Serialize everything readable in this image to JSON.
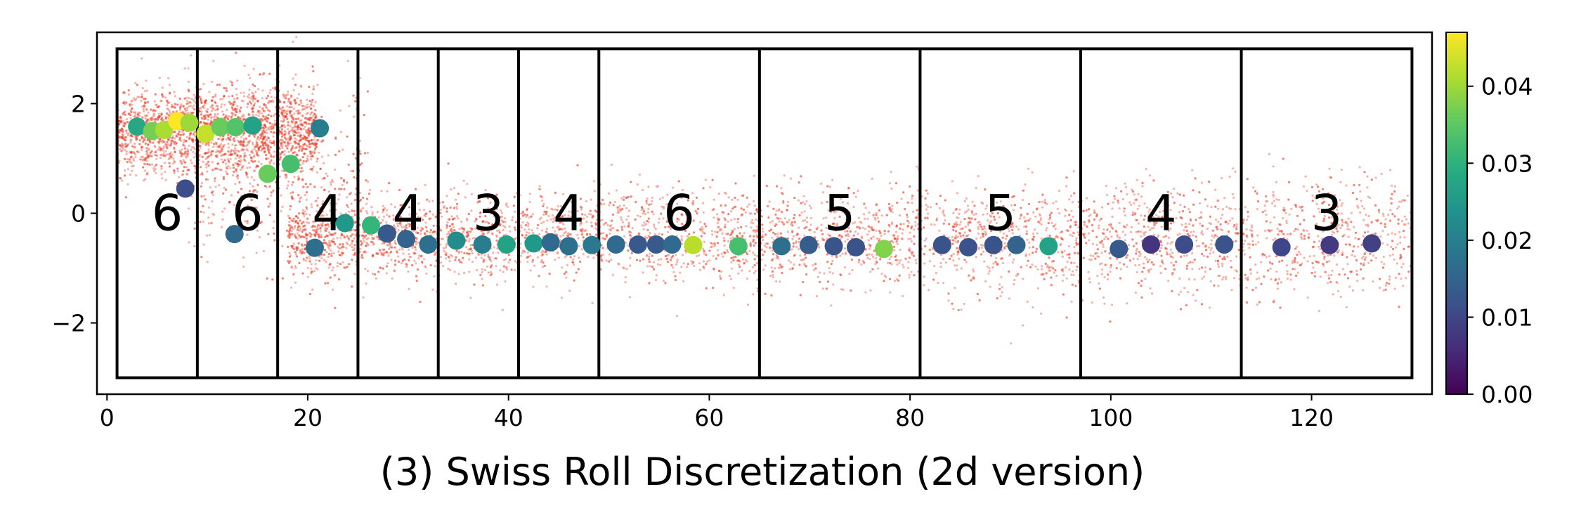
{
  "chart_data": {
    "type": "scatter",
    "title": "(3) Swiss Roll Discretization (2d version)",
    "xlabel": "",
    "ylabel": "",
    "xlim": [
      -1,
      132
    ],
    "ylim": [
      -3.3,
      3.3
    ],
    "x_ticks": [
      0,
      20,
      40,
      60,
      80,
      100,
      120
    ],
    "y_ticks": [
      -2,
      0,
      2
    ],
    "x_tick_labels": [
      "0",
      "20",
      "40",
      "60",
      "80",
      "100",
      "120"
    ],
    "y_tick_labels": [
      "−2",
      "0",
      "2"
    ],
    "grid": false,
    "colorbar": {
      "colormap": "viridis",
      "range": [
        0.0,
        0.047
      ],
      "ticks": [
        0.0,
        0.01,
        0.02,
        0.03,
        0.04
      ],
      "tick_labels": [
        "0.00",
        "0.01",
        "0.02",
        "0.03",
        "0.04"
      ]
    },
    "background_points": {
      "color": "#e8402a",
      "description_free": true,
      "count_hint": 16000
    },
    "outer_box": {
      "x": [
        1,
        130
      ],
      "y": [
        -3,
        3
      ]
    },
    "bin_edges": [
      1,
      9,
      17,
      25,
      33,
      41,
      49,
      65,
      81,
      97,
      113,
      130
    ],
    "bin_counts": [
      "6",
      "6",
      "4",
      "4",
      "3",
      "4",
      "6",
      "5",
      "5",
      "4",
      "3"
    ],
    "series": [
      {
        "values": [
          {
            "x": 3.0,
            "y": 1.58,
            "c": 0.028
          },
          {
            "x": 4.5,
            "y": 1.5,
            "c": 0.037
          },
          {
            "x": 5.7,
            "y": 1.52,
            "c": 0.041
          },
          {
            "x": 7.0,
            "y": 1.68,
            "c": 0.047
          },
          {
            "x": 8.2,
            "y": 1.65,
            "c": 0.04
          },
          {
            "x": 9.8,
            "y": 1.45,
            "c": 0.043
          },
          {
            "x": 11.3,
            "y": 1.57,
            "c": 0.036
          },
          {
            "x": 12.8,
            "y": 1.57,
            "c": 0.034
          },
          {
            "x": 14.5,
            "y": 1.6,
            "c": 0.027
          },
          {
            "x": 7.8,
            "y": 0.45,
            "c": 0.011
          },
          {
            "x": 12.7,
            "y": -0.38,
            "c": 0.016
          },
          {
            "x": 16.0,
            "y": 0.72,
            "c": 0.036
          },
          {
            "x": 18.3,
            "y": 0.9,
            "c": 0.033
          },
          {
            "x": 21.2,
            "y": 1.55,
            "c": 0.02
          },
          {
            "x": 20.7,
            "y": -0.63,
            "c": 0.017
          },
          {
            "x": 23.7,
            "y": -0.18,
            "c": 0.025
          },
          {
            "x": 26.3,
            "y": -0.22,
            "c": 0.031
          },
          {
            "x": 27.9,
            "y": -0.37,
            "c": 0.013
          },
          {
            "x": 29.8,
            "y": -0.47,
            "c": 0.015
          },
          {
            "x": 32.0,
            "y": -0.57,
            "c": 0.017
          },
          {
            "x": 34.8,
            "y": -0.5,
            "c": 0.023
          },
          {
            "x": 37.4,
            "y": -0.57,
            "c": 0.02
          },
          {
            "x": 39.8,
            "y": -0.57,
            "c": 0.027
          },
          {
            "x": 42.5,
            "y": -0.55,
            "c": 0.025
          },
          {
            "x": 44.2,
            "y": -0.53,
            "c": 0.016
          },
          {
            "x": 46.0,
            "y": -0.6,
            "c": 0.017
          },
          {
            "x": 48.3,
            "y": -0.58,
            "c": 0.019
          },
          {
            "x": 50.7,
            "y": -0.57,
            "c": 0.016
          },
          {
            "x": 52.9,
            "y": -0.57,
            "c": 0.013
          },
          {
            "x": 54.7,
            "y": -0.57,
            "c": 0.013
          },
          {
            "x": 56.3,
            "y": -0.57,
            "c": 0.016
          },
          {
            "x": 58.4,
            "y": -0.58,
            "c": 0.042
          },
          {
            "x": 62.9,
            "y": -0.6,
            "c": 0.033
          },
          {
            "x": 67.2,
            "y": -0.6,
            "c": 0.017
          },
          {
            "x": 69.9,
            "y": -0.58,
            "c": 0.014
          },
          {
            "x": 72.4,
            "y": -0.6,
            "c": 0.012
          },
          {
            "x": 74.6,
            "y": -0.62,
            "c": 0.012
          },
          {
            "x": 77.4,
            "y": -0.65,
            "c": 0.038
          },
          {
            "x": 83.2,
            "y": -0.58,
            "c": 0.012
          },
          {
            "x": 85.8,
            "y": -0.62,
            "c": 0.012
          },
          {
            "x": 88.3,
            "y": -0.58,
            "c": 0.012
          },
          {
            "x": 90.6,
            "y": -0.58,
            "c": 0.015
          },
          {
            "x": 93.8,
            "y": -0.6,
            "c": 0.027
          },
          {
            "x": 100.8,
            "y": -0.65,
            "c": 0.013
          },
          {
            "x": 104.0,
            "y": -0.57,
            "c": 0.007
          },
          {
            "x": 107.3,
            "y": -0.57,
            "c": 0.011
          },
          {
            "x": 111.3,
            "y": -0.57,
            "c": 0.012
          },
          {
            "x": 117.0,
            "y": -0.62,
            "c": 0.01
          },
          {
            "x": 121.8,
            "y": -0.58,
            "c": 0.008
          },
          {
            "x": 126.0,
            "y": -0.55,
            "c": 0.009
          }
        ]
      }
    ]
  }
}
